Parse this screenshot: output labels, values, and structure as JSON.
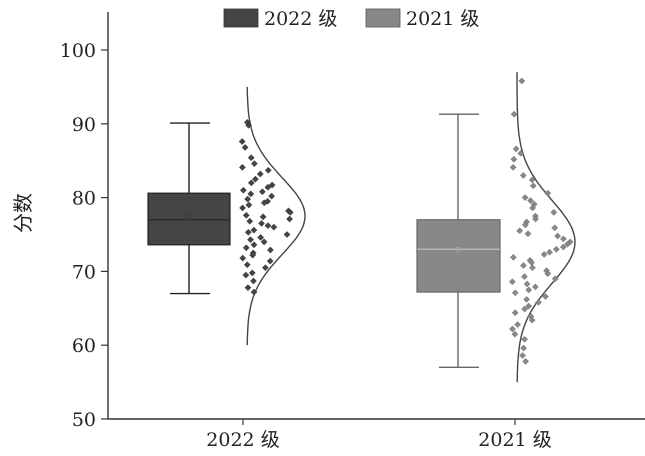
{
  "chart_data": {
    "type": "raincloud",
    "ylabel": "分数",
    "ylim": [
      50,
      100
    ],
    "yticks": [
      50,
      60,
      70,
      80,
      90,
      100
    ],
    "categories": [
      "2022 级",
      "2021 级"
    ],
    "legend": {
      "placement": "top",
      "entries": [
        "2022 级",
        "2021 级"
      ]
    },
    "grid": false,
    "series": [
      {
        "name": "2022 级",
        "color": "#454545",
        "box": {
          "min": 67,
          "q1": 73.6,
          "median": 77,
          "q3": 80.6,
          "max": 90.1,
          "mean": 77.6
        },
        "density": {
          "mean": 77.5,
          "sd": 5.2,
          "range": [
            60,
            95
          ]
        },
        "points": [
          90.2,
          89.8,
          87.6,
          86.8,
          85.4,
          84.6,
          84.1,
          83.7,
          83.2,
          82.5,
          82.0,
          81.7,
          81.4,
          81.0,
          80.8,
          80.5,
          80.2,
          79.8,
          79.5,
          79.3,
          79.0,
          78.6,
          78.2,
          78.0,
          77.6,
          77.4,
          77.1,
          76.8,
          76.5,
          76.2,
          76.0,
          75.6,
          75.3,
          75.0,
          74.6,
          74.3,
          74.0,
          73.6,
          73.2,
          72.9,
          72.5,
          72.2,
          71.8,
          71.4,
          70.9,
          70.5,
          69.8,
          69.5,
          68.7,
          67.8,
          67.2
        ]
      },
      {
        "name": "2021 级",
        "color": "#888888",
        "box": {
          "min": 57,
          "q1": 67.2,
          "median": 73,
          "q3": 77,
          "max": 91.3,
          "mean": 73
        },
        "density": {
          "mean": 74,
          "sd": 5.6,
          "range": [
            55,
            97
          ]
        },
        "points": [
          95.8,
          91.3,
          86.6,
          86.0,
          85.2,
          84.1,
          83.0,
          82.4,
          81.6,
          80.6,
          80.0,
          79.6,
          79.1,
          78.6,
          78.0,
          77.5,
          77.1,
          76.7,
          76.3,
          75.9,
          75.5,
          75.1,
          74.8,
          74.4,
          74.0,
          73.7,
          73.3,
          73.0,
          72.6,
          72.3,
          71.9,
          71.5,
          71.2,
          70.8,
          70.5,
          70.1,
          69.7,
          69.3,
          69.0,
          68.6,
          68.3,
          67.9,
          67.5,
          67.1,
          66.6,
          66.2,
          65.8,
          65.3,
          64.9,
          64.4,
          63.9,
          63.4,
          62.8,
          62.2,
          61.5,
          60.8,
          59.6,
          58.6,
          57.8
        ]
      }
    ]
  }
}
